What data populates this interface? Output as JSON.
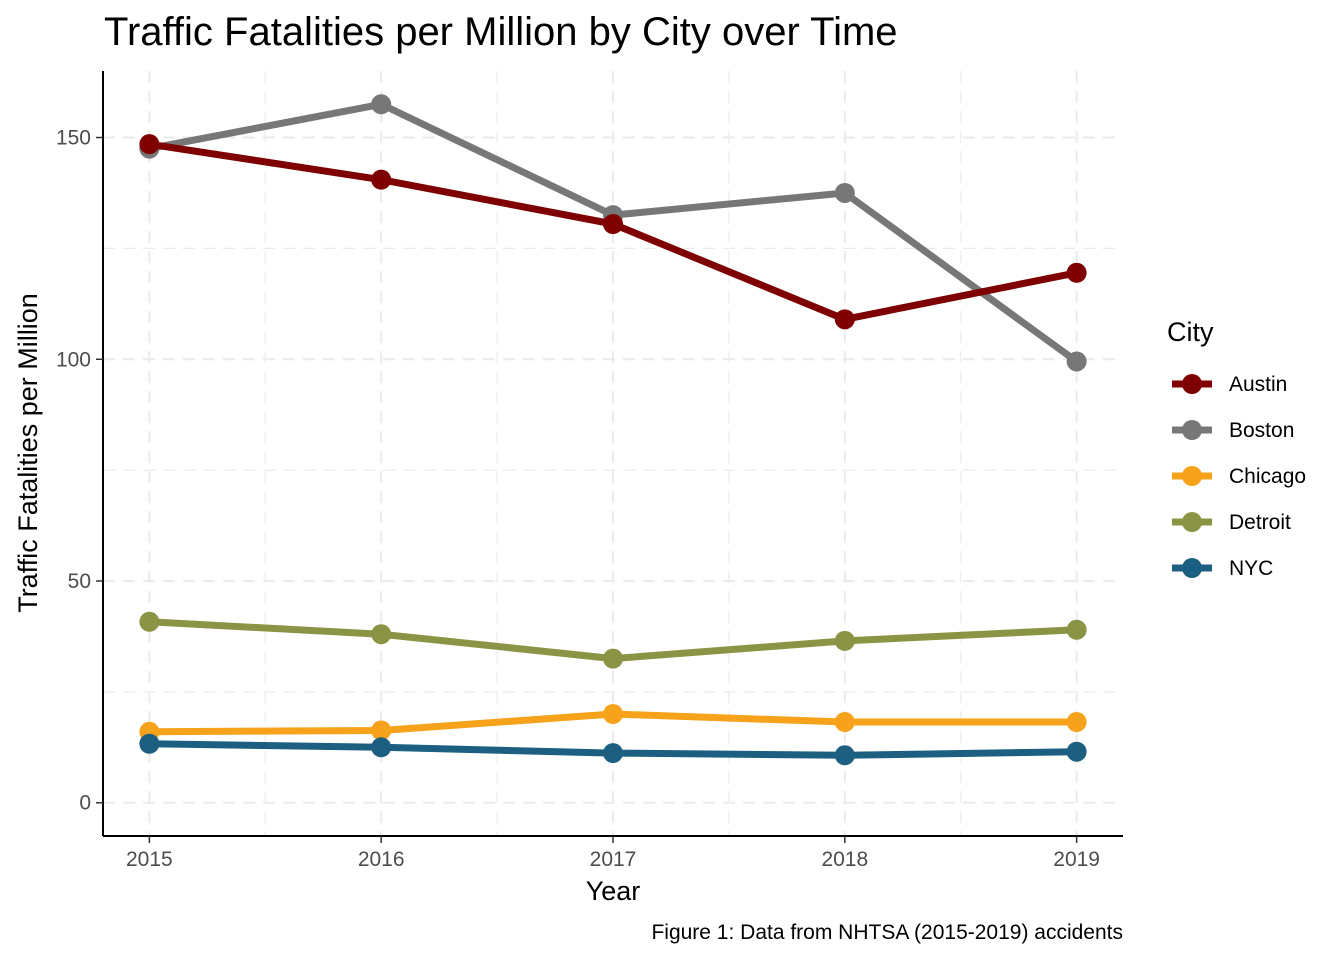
{
  "chart_data": {
    "type": "line",
    "title": "Traffic Fatalities per Million by City over Time",
    "xlabel": "Year",
    "ylabel": "Traffic Fatalities per Million",
    "caption": "Figure 1: Data from NHTSA (2015-2019) accidents",
    "x": [
      2015,
      2016,
      2017,
      2018,
      2019
    ],
    "x_tick_labels": [
      "2015",
      "2016",
      "2017",
      "2018",
      "2019"
    ],
    "y_ticks": [
      0,
      50,
      100,
      150
    ],
    "y_tick_labels": [
      "0",
      "50",
      "100",
      "150"
    ],
    "xlim": [
      2014.8,
      2019.2
    ],
    "ylim": [
      -7.5,
      165
    ],
    "grid": true,
    "legend_title": "City",
    "legend_position": "right",
    "series": [
      {
        "name": "Austin",
        "color": "#7f0000",
        "values": [
          148.5,
          140.5,
          130.5,
          109.0,
          119.5
        ]
      },
      {
        "name": "Boston",
        "color": "#777777",
        "values": [
          147.5,
          157.5,
          132.5,
          137.5,
          99.5
        ]
      },
      {
        "name": "Chicago",
        "color": "#f7a21b",
        "values": [
          16.0,
          16.3,
          20.0,
          18.2,
          18.2
        ]
      },
      {
        "name": "Detroit",
        "color": "#8b9444",
        "values": [
          40.8,
          38.0,
          32.5,
          36.5,
          39.0
        ]
      },
      {
        "name": "NYC",
        "color": "#1c5f80",
        "values": [
          13.3,
          12.5,
          11.2,
          10.7,
          11.5
        ]
      }
    ],
    "draw_order": [
      "Boston",
      "Austin",
      "Detroit",
      "Chicago",
      "NYC"
    ]
  }
}
